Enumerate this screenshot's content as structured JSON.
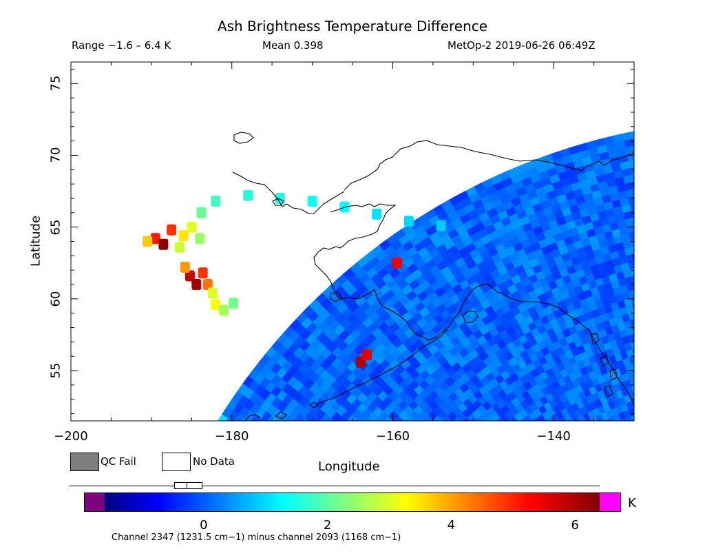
{
  "header": {
    "title": "Ash Brightness Temperature Difference",
    "range_text": "Range −1.6 – 6.4 K",
    "mean_text": "Mean 0.398",
    "satellite_text": "MetOp-2 2019-06-26 06:49Z"
  },
  "axes": {
    "xlabel": "Longitude",
    "ylabel": "Latitude",
    "xlim": [
      -200,
      -130
    ],
    "ylim": [
      51.5,
      76.5
    ],
    "xticks": [
      {
        "value": -200,
        "label": "−200"
      },
      {
        "value": -180,
        "label": "−180"
      },
      {
        "value": -160,
        "label": "−160"
      },
      {
        "value": -140,
        "label": "−140"
      }
    ],
    "yticks": [
      {
        "value": 55,
        "label": "55"
      },
      {
        "value": 60,
        "label": "60"
      },
      {
        "value": 65,
        "label": "65"
      },
      {
        "value": 70,
        "label": "70"
      },
      {
        "value": 75,
        "label": "75"
      }
    ]
  },
  "legend": {
    "qc_fail_label": "QC Fail",
    "no_data_label": "No Data",
    "qc_fail_color": "#7f7f7f",
    "no_data_color": "#ffffff"
  },
  "colorbar": {
    "unit": "K",
    "range": [
      -1.6,
      6.4
    ],
    "under_color": "#800080",
    "over_color": "#ff00ff",
    "ticks": [
      {
        "value": 0,
        "label": "0"
      },
      {
        "value": 2,
        "label": "2"
      },
      {
        "value": 4,
        "label": "4"
      },
      {
        "value": 6,
        "label": "6"
      }
    ],
    "caption": "Channel 2347 (1231.5 cm−1) minus channel 2093 (1168 cm−1)"
  },
  "chart_data": {
    "type": "heatmap",
    "title": "Ash Brightness Temperature Difference",
    "xlabel": "Longitude",
    "ylabel": "Latitude",
    "xlim": [
      -200,
      -130
    ],
    "ylim": [
      51.5,
      76.5
    ],
    "value_range": [
      -1.6,
      6.4
    ],
    "mean": 0.398,
    "units": "K",
    "colormap": "jet",
    "swath_background_value": 0.2,
    "features": [
      {
        "lon": -189.5,
        "lat": 64.2,
        "value": 5.2
      },
      {
        "lon": -188.5,
        "lat": 63.8,
        "value": 6.3
      },
      {
        "lon": -187.5,
        "lat": 64.8,
        "value": 5.0
      },
      {
        "lon": -190.5,
        "lat": 64.0,
        "value": 3.8
      },
      {
        "lon": -186.0,
        "lat": 64.4,
        "value": 3.6
      },
      {
        "lon": -185.0,
        "lat": 65.0,
        "value": 3.2
      },
      {
        "lon": -184.0,
        "lat": 64.2,
        "value": 2.6
      },
      {
        "lon": -186.5,
        "lat": 63.6,
        "value": 3.0
      },
      {
        "lon": -185.2,
        "lat": 61.6,
        "value": 5.8
      },
      {
        "lon": -184.4,
        "lat": 61.0,
        "value": 6.1
      },
      {
        "lon": -183.6,
        "lat": 61.8,
        "value": 5.0
      },
      {
        "lon": -183.0,
        "lat": 61.0,
        "value": 4.5
      },
      {
        "lon": -185.8,
        "lat": 62.2,
        "value": 4.2
      },
      {
        "lon": -182.4,
        "lat": 60.4,
        "value": 3.1
      },
      {
        "lon": -182.0,
        "lat": 59.6,
        "value": 3.4
      },
      {
        "lon": -181.0,
        "lat": 59.2,
        "value": 2.7
      },
      {
        "lon": -179.8,
        "lat": 59.7,
        "value": 2.3
      },
      {
        "lon": -183.8,
        "lat": 66.0,
        "value": 2.2
      },
      {
        "lon": -182.0,
        "lat": 66.8,
        "value": 1.9
      },
      {
        "lon": -178.0,
        "lat": 67.2,
        "value": 1.7
      },
      {
        "lon": -174.0,
        "lat": 67.0,
        "value": 1.6
      },
      {
        "lon": -170.0,
        "lat": 66.8,
        "value": 1.5
      },
      {
        "lon": -166.0,
        "lat": 66.4,
        "value": 1.4
      },
      {
        "lon": -162.0,
        "lat": 65.9,
        "value": 1.2
      },
      {
        "lon": -158.0,
        "lat": 65.4,
        "value": 1.1
      },
      {
        "lon": -154.0,
        "lat": 65.1,
        "value": 1.0
      },
      {
        "lon": -164.0,
        "lat": 55.6,
        "value": 6.0
      },
      {
        "lon": -163.2,
        "lat": 56.1,
        "value": 5.6
      },
      {
        "lon": -159.5,
        "lat": 62.5,
        "value": 5.5
      }
    ]
  }
}
